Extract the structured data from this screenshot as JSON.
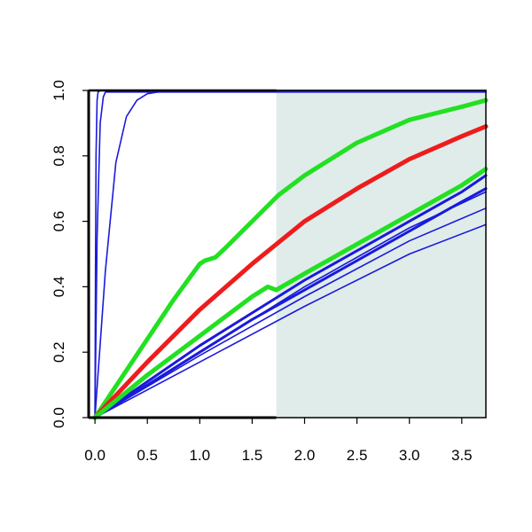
{
  "chart_data": {
    "type": "line",
    "title": "",
    "xlabel": "",
    "ylabel": "",
    "xlim": [
      -0.06,
      3.73
    ],
    "ylim": [
      0.0,
      1.0
    ],
    "shaded_region": {
      "x_from": 1.73,
      "x_to": 3.73,
      "color": "#e0ecea"
    },
    "x_ticks": [
      0.0,
      0.5,
      1.0,
      1.5,
      2.0,
      2.5,
      3.0,
      3.5
    ],
    "x_tick_labels": [
      "0.0",
      "0.5",
      "1.0",
      "1.5",
      "2.0",
      "2.5",
      "3.0",
      "3.5"
    ],
    "y_ticks": [
      0.0,
      0.2,
      0.4,
      0.6,
      0.8,
      1.0
    ],
    "y_tick_labels": [
      "0.0",
      "0.2",
      "0.4",
      "0.6",
      "0.8",
      "1.0"
    ],
    "colors": {
      "blue": "#1a1adc",
      "green": "#22e022",
      "red": "#ee1c1c",
      "black": "#000000"
    },
    "series": [
      {
        "color": "blue",
        "weight": "thin",
        "x": [
          0,
          0.005,
          0.01,
          0.02,
          0.03,
          0.05,
          3.73
        ],
        "y": [
          0,
          0.45,
          0.8,
          0.97,
          0.995,
          1.0,
          1.0
        ]
      },
      {
        "color": "blue",
        "weight": "thin",
        "x": [
          0,
          0.02,
          0.05,
          0.08,
          0.1,
          3.73
        ],
        "y": [
          0,
          0.55,
          0.9,
          0.98,
          0.995,
          0.995
        ]
      },
      {
        "color": "blue",
        "weight": "thin",
        "x": [
          0,
          0.1,
          0.2,
          0.3,
          0.4,
          0.5,
          0.6,
          0.7,
          3.73
        ],
        "y": [
          0,
          0.45,
          0.78,
          0.92,
          0.97,
          0.99,
          0.995,
          1.0,
          1.0
        ]
      },
      {
        "color": "blue",
        "weight": "thick",
        "x": [
          0,
          0.5,
          1.0,
          1.5,
          2.0,
          2.5,
          3.0,
          3.5,
          3.73
        ],
        "y": [
          0,
          0.1,
          0.2,
          0.3,
          0.39,
          0.48,
          0.57,
          0.66,
          0.7
        ]
      },
      {
        "color": "blue",
        "weight": "thick",
        "x": [
          0,
          0.5,
          1.0,
          1.5,
          2.0,
          2.5,
          3.0,
          3.5,
          3.73
        ],
        "y": [
          0,
          0.11,
          0.22,
          0.32,
          0.42,
          0.51,
          0.6,
          0.69,
          0.74
        ]
      },
      {
        "color": "blue",
        "weight": "thin",
        "x": [
          0,
          1.0,
          2.0,
          3.0,
          3.73
        ],
        "y": [
          0,
          0.2,
          0.4,
          0.58,
          0.69
        ]
      },
      {
        "color": "blue",
        "weight": "thin",
        "x": [
          0,
          1.0,
          2.0,
          3.0,
          3.73
        ],
        "y": [
          0,
          0.19,
          0.37,
          0.54,
          0.64
        ]
      },
      {
        "color": "blue",
        "weight": "thin",
        "x": [
          0,
          1.0,
          2.0,
          3.0,
          3.73
        ],
        "y": [
          0,
          0.17,
          0.34,
          0.5,
          0.59
        ]
      },
      {
        "color": "green",
        "weight": "bold",
        "x": [
          0,
          0.25,
          0.5,
          0.75,
          1.0,
          1.05,
          1.15,
          1.25,
          1.5,
          1.75,
          2.0,
          2.5,
          3.0,
          3.5,
          3.73
        ],
        "y": [
          0,
          0.12,
          0.24,
          0.36,
          0.47,
          0.48,
          0.49,
          0.52,
          0.6,
          0.68,
          0.74,
          0.84,
          0.91,
          0.95,
          0.97
        ]
      },
      {
        "color": "red",
        "weight": "bold",
        "x": [
          0,
          0.5,
          1.0,
          1.5,
          2.0,
          2.5,
          3.0,
          3.5,
          3.73
        ],
        "y": [
          0,
          0.17,
          0.33,
          0.47,
          0.6,
          0.7,
          0.79,
          0.86,
          0.89
        ]
      },
      {
        "color": "green",
        "weight": "bold",
        "x": [
          0,
          0.5,
          1.0,
          1.5,
          1.65,
          1.73,
          2.0,
          2.5,
          3.0,
          3.5,
          3.73
        ],
        "y": [
          0,
          0.13,
          0.25,
          0.37,
          0.4,
          0.39,
          0.44,
          0.53,
          0.62,
          0.71,
          0.76
        ]
      }
    ]
  }
}
